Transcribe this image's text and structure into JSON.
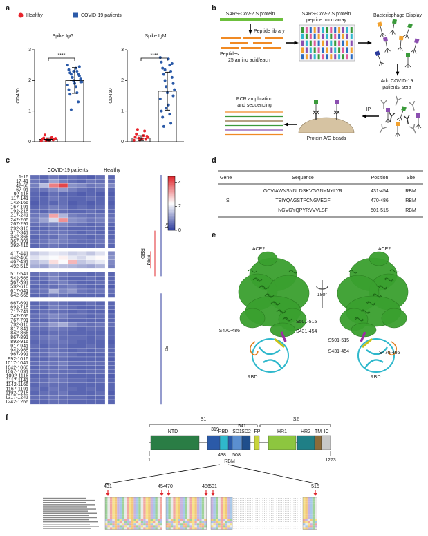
{
  "panel_labels": [
    "a",
    "b",
    "c",
    "d",
    "e",
    "f"
  ],
  "chart_data": [
    {
      "type": "bar",
      "title": "Spike IgG",
      "ylabel": "OD450",
      "annotation": "****",
      "ylim": [
        0,
        3
      ],
      "yticks": [
        0,
        1,
        2,
        3
      ],
      "series": [
        {
          "name": "Healthy",
          "color": "#e8242c",
          "values": [
            0.08
          ],
          "errors": [
            0.05
          ],
          "points": [
            0.02,
            0.05,
            0.08,
            0.1,
            0.12,
            0.15,
            0.22,
            0.06,
            0.04,
            0.09,
            0.07,
            0.11
          ]
        },
        {
          "name": "COVID-19 patients",
          "color": "#2b5aa8",
          "values": [
            2.0
          ],
          "errors": [
            0.42
          ],
          "points": [
            2.5,
            2.4,
            2.35,
            2.3,
            2.25,
            2.2,
            2.2,
            2.15,
            2.1,
            2.05,
            2.0,
            1.95,
            1.9,
            1.85,
            1.8,
            1.7,
            1.6,
            1.55,
            1.3,
            1.05,
            2.45,
            2.1,
            1.95,
            2.3
          ]
        }
      ]
    },
    {
      "type": "bar",
      "title": "Spike IgM",
      "ylabel": "OD450",
      "annotation": "****",
      "ylim": [
        0,
        3
      ],
      "yticks": [
        0,
        1,
        2,
        3
      ],
      "series": [
        {
          "color": "#e8242c",
          "values": [
            0.12
          ],
          "errors": [
            0.08
          ],
          "points": [
            0.05,
            0.1,
            0.15,
            0.2,
            0.25,
            0.35,
            0.4,
            0.08,
            0.12,
            0.18,
            0.06,
            0.14
          ]
        },
        {
          "color": "#2b5aa8",
          "values": [
            1.65
          ],
          "errors": [
            0.62
          ],
          "points": [
            2.75,
            2.7,
            2.6,
            2.5,
            2.4,
            2.3,
            2.2,
            2.1,
            2.0,
            1.9,
            1.8,
            1.7,
            1.6,
            1.4,
            1.2,
            1.0,
            0.9,
            0.8,
            0.6,
            0.5,
            2.55,
            2.35,
            1.5,
            1.1
          ]
        }
      ]
    },
    {
      "type": "heatmap",
      "column_groups": [
        "COVID-19 patients",
        "Healthy"
      ],
      "rows": [
        "1-16",
        "17-41",
        "42-66",
        "67-91",
        "92-116",
        "117-141",
        "142-166",
        "167-191",
        "192-216",
        "217-241",
        "242-266",
        "267-291",
        "292-316",
        "317-341",
        "342-366",
        "367-391",
        "392-416",
        "417-441",
        "442-466",
        "467-491",
        "492-516",
        "517-541",
        "542-566",
        "567-591",
        "592-616",
        "617-641",
        "642-666",
        "667-691",
        "692-716",
        "717-741",
        "742-766",
        "767-791",
        "792-816",
        "817-841",
        "842-866",
        "867-891",
        "892-916",
        "917-941",
        "942-966",
        "967-991",
        "992-1016",
        "1017-1041",
        "1042-1066",
        "1067-1091",
        "1092-1116",
        "1117-1141",
        "1142-1166",
        "1167-1191",
        "1192-1216",
        "1217-1241",
        "1242-1266"
      ],
      "values": [
        [
          0.6,
          0.5,
          0.7,
          0.5,
          0.6,
          0.5,
          0.4,
          0.6,
          0.5
        ],
        [
          0.7,
          0.6,
          1.2,
          0.8,
          0.6,
          0.5,
          0.7,
          0.6,
          0.6
        ],
        [
          0.8,
          1.5,
          3.6,
          4.2,
          1.0,
          0.9,
          0.7,
          0.8,
          0.9
        ],
        [
          0.6,
          0.7,
          0.9,
          1.1,
          0.8,
          0.6,
          0.5,
          0.6,
          0.5
        ],
        [
          0.5,
          0.4,
          0.6,
          0.5,
          0.5,
          0.4,
          0.5,
          0.4,
          0.4
        ],
        [
          0.5,
          0.5,
          0.7,
          0.6,
          0.5,
          0.5,
          0.6,
          0.5,
          0.5
        ],
        [
          0.4,
          0.5,
          0.5,
          0.6,
          0.4,
          0.5,
          0.4,
          0.5,
          0.4
        ],
        [
          0.5,
          0.6,
          0.8,
          0.7,
          0.5,
          0.6,
          0.5,
          0.6,
          0.5
        ],
        [
          0.6,
          0.5,
          0.7,
          0.6,
          0.5,
          0.5,
          0.6,
          0.5,
          0.5
        ],
        [
          0.7,
          0.9,
          3.2,
          1.4,
          0.8,
          0.7,
          0.6,
          0.7,
          0.6
        ],
        [
          0.8,
          1.2,
          1.8,
          3.4,
          1.0,
          0.9,
          0.7,
          0.8,
          0.7
        ],
        [
          0.6,
          0.7,
          0.8,
          0.9,
          0.7,
          0.6,
          0.5,
          0.6,
          0.5
        ],
        [
          0.5,
          0.5,
          0.6,
          0.6,
          0.5,
          0.5,
          0.5,
          0.5,
          0.4
        ],
        [
          0.6,
          0.6,
          0.7,
          0.7,
          0.6,
          0.5,
          0.6,
          0.5,
          0.5
        ],
        [
          0.5,
          0.6,
          0.6,
          0.8,
          0.6,
          0.6,
          0.5,
          0.6,
          0.5
        ],
        [
          0.6,
          0.7,
          0.9,
          0.8,
          0.7,
          0.6,
          0.6,
          0.7,
          0.6
        ],
        [
          0.5,
          0.6,
          0.7,
          0.6,
          0.5,
          0.5,
          0.5,
          0.6,
          0.5
        ],
        [
          1.6,
          1.8,
          2.0,
          1.9,
          1.7,
          1.8,
          1.6,
          1.9,
          0.9
        ],
        [
          1.9,
          2.1,
          2.2,
          2.4,
          2.0,
          1.8,
          2.1,
          2.3,
          1.0
        ],
        [
          1.5,
          1.7,
          2.6,
          2.2,
          3.0,
          1.6,
          1.8,
          2.0,
          0.9
        ],
        [
          1.3,
          1.2,
          1.6,
          1.5,
          1.4,
          1.3,
          1.2,
          1.4,
          0.8
        ],
        [
          0.6,
          0.7,
          0.8,
          0.7,
          0.6,
          0.6,
          0.5,
          0.6,
          0.5
        ],
        [
          0.5,
          0.6,
          0.9,
          0.6,
          0.5,
          0.5,
          0.6,
          0.5,
          0.5
        ],
        [
          0.6,
          0.5,
          0.7,
          0.8,
          0.6,
          0.5,
          0.5,
          0.6,
          0.5
        ],
        [
          0.5,
          0.6,
          0.6,
          0.7,
          0.8,
          0.6,
          0.5,
          0.5,
          0.4
        ],
        [
          0.6,
          0.7,
          1.4,
          0.9,
          1.1,
          0.7,
          0.6,
          0.7,
          0.6
        ],
        [
          0.5,
          0.5,
          0.7,
          0.6,
          0.5,
          0.5,
          0.5,
          0.5,
          0.5
        ],
        [
          0.5,
          0.6,
          0.7,
          0.6,
          0.5,
          0.5,
          0.6,
          0.5,
          0.5
        ],
        [
          0.6,
          0.5,
          0.8,
          0.7,
          0.6,
          0.5,
          0.5,
          0.6,
          0.5
        ],
        [
          0.5,
          0.6,
          0.6,
          0.6,
          0.5,
          0.6,
          0.5,
          0.5,
          0.4
        ],
        [
          0.6,
          0.7,
          0.9,
          0.8,
          0.6,
          0.6,
          0.5,
          0.6,
          0.5
        ],
        [
          0.5,
          0.5,
          0.7,
          0.6,
          0.5,
          0.5,
          0.5,
          0.5,
          0.5
        ],
        [
          0.7,
          0.8,
          1.1,
          1.3,
          0.9,
          0.7,
          0.6,
          0.7,
          0.6
        ],
        [
          0.6,
          0.6,
          0.8,
          0.7,
          0.6,
          0.5,
          0.6,
          0.6,
          0.5
        ],
        [
          0.5,
          0.5,
          0.6,
          0.6,
          0.5,
          0.5,
          0.5,
          0.5,
          0.5
        ],
        [
          0.6,
          0.7,
          0.8,
          0.6,
          0.6,
          0.6,
          0.5,
          0.6,
          0.5
        ],
        [
          0.5,
          0.6,
          0.7,
          0.7,
          0.6,
          0.5,
          0.5,
          0.5,
          0.4
        ],
        [
          0.6,
          0.5,
          0.6,
          0.6,
          0.5,
          0.5,
          0.6,
          0.5,
          0.5
        ],
        [
          0.5,
          0.6,
          0.7,
          0.6,
          0.5,
          0.6,
          0.5,
          0.6,
          0.5
        ],
        [
          0.6,
          0.6,
          0.8,
          0.7,
          0.6,
          0.5,
          0.5,
          0.5,
          0.5
        ],
        [
          0.5,
          0.5,
          0.6,
          0.6,
          0.5,
          0.5,
          0.5,
          0.5,
          0.4
        ],
        [
          0.6,
          0.7,
          0.7,
          0.8,
          0.6,
          0.6,
          0.6,
          0.6,
          0.5
        ],
        [
          0.5,
          0.6,
          0.6,
          0.7,
          0.5,
          0.5,
          0.5,
          0.5,
          0.5
        ],
        [
          0.6,
          0.6,
          0.7,
          0.6,
          0.6,
          0.5,
          0.6,
          0.6,
          0.5
        ],
        [
          0.5,
          0.5,
          0.6,
          0.6,
          0.5,
          0.5,
          0.5,
          0.5,
          0.4
        ],
        [
          0.6,
          0.6,
          0.8,
          0.7,
          0.6,
          0.6,
          0.5,
          0.6,
          0.5
        ],
        [
          0.5,
          0.6,
          0.6,
          0.6,
          0.5,
          0.5,
          0.5,
          0.5,
          0.5
        ],
        [
          0.6,
          0.5,
          0.7,
          0.6,
          0.6,
          0.5,
          0.6,
          0.5,
          0.5
        ],
        [
          0.5,
          0.6,
          0.6,
          0.7,
          0.5,
          0.5,
          0.5,
          0.6,
          0.4
        ],
        [
          0.6,
          0.6,
          0.7,
          0.6,
          0.6,
          0.6,
          0.5,
          0.5,
          0.5
        ],
        [
          0.5,
          0.5,
          0.6,
          0.6,
          0.5,
          0.5,
          0.5,
          0.5,
          0.5
        ]
      ],
      "zlim": [
        0,
        4.5
      ],
      "zticks": [
        0,
        2,
        4
      ],
      "colors": [
        "#2b3a9c",
        "#ffffff",
        "#e0282e"
      ],
      "region_labels": [
        "S1",
        "RBD",
        "RBM",
        "S2"
      ]
    }
  ],
  "diagram": {
    "protein": "SARS-CoV-2 S protein",
    "library": "Peptide library",
    "peptides": [
      "Peptides",
      "25 amino acid/each"
    ],
    "microarray": [
      "SARS-CoV-2 S protein",
      "peptide microarray"
    ],
    "phage": "Bacteriophage Display",
    "sera": [
      "Add COVID-19",
      "patients' sera"
    ],
    "ip": "IP",
    "beads": "Protein A/G beads",
    "pcr": [
      "PCR amplication",
      "and sequencing"
    ]
  },
  "table": {
    "headers": [
      "Gene",
      "Sequence",
      "Position",
      "Site"
    ],
    "gene": "S",
    "rows": [
      [
        "GCVIAWNSNNLDSKVGGNYNYLYR",
        "431-454",
        "RBM"
      ],
      [
        "TEIYQAGSTPCNGVEGF",
        "470-486",
        "RBM"
      ],
      [
        "NGVGYQPYRVVVLSF",
        "501-515",
        "RBM"
      ]
    ]
  },
  "structure": {
    "ace2": "ACE2",
    "rotation": "180°",
    "rbd": "RBD",
    "epitopes": [
      {
        "label": "S470-486",
        "color": "#e07b1a"
      },
      {
        "label": "S501-515",
        "color": "#9b2fa0"
      },
      {
        "label": "S431-454",
        "color": "#c9c21c"
      }
    ],
    "ace2_color": "#3aa02f",
    "rbd_color": "#2fb8cc"
  },
  "domain_map": {
    "groups": [
      "S1",
      "S2"
    ],
    "domains": [
      {
        "name": "NTD",
        "color": "#2a7d45"
      },
      {
        "name": "RBD",
        "color": "#2b5aa8"
      },
      {
        "name": "SD1",
        "color": "#5b8fd0"
      },
      {
        "name": "SD2",
        "color": "#1f4e8c"
      },
      {
        "name": "FP",
        "color": "#c9d43a"
      },
      {
        "name": "HR1",
        "color": "#8dc63f"
      },
      {
        "name": "HR2",
        "color": "#1f7f86"
      },
      {
        "name": "TM",
        "color": "#8b6b3a"
      },
      {
        "name": "IC",
        "color": "#c8c8c8"
      }
    ],
    "positions": [
      1,
      319,
      541,
      438,
      508,
      1273
    ],
    "rbm": "RBM",
    "rbm_color": "#2fb8cc"
  },
  "alignment": {
    "positions": [
      431,
      454,
      470,
      486,
      501,
      515
    ]
  }
}
